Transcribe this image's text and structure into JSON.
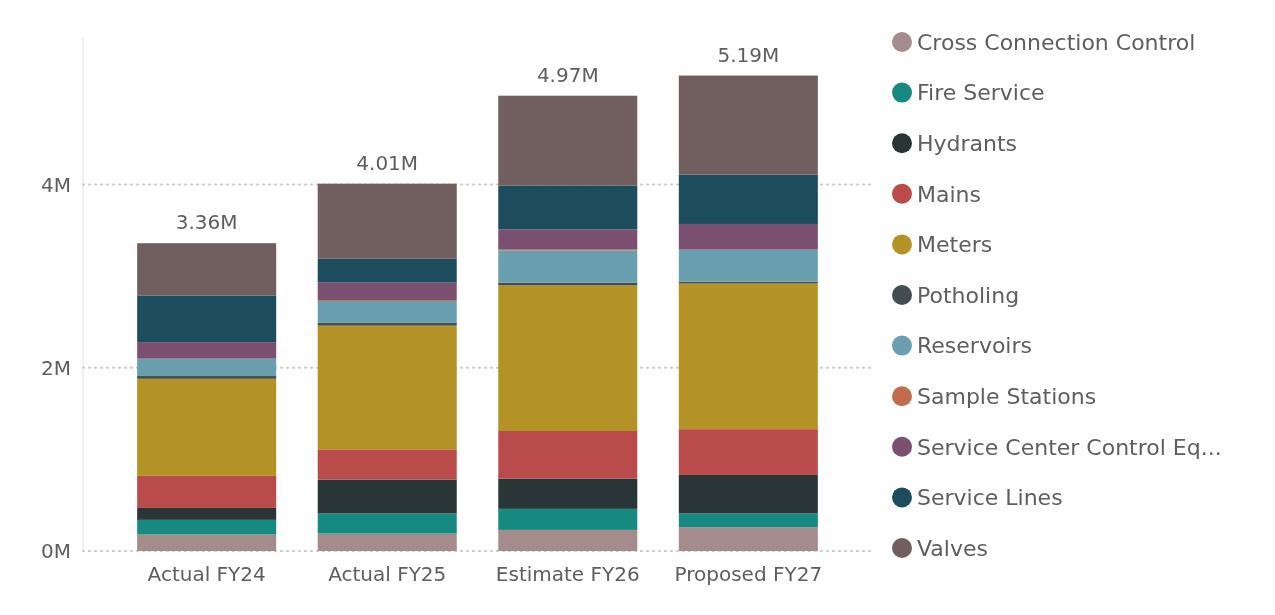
{
  "chart_data": {
    "type": "bar",
    "stacked": true,
    "categories": [
      "Actual FY24",
      "Actual FY25",
      "Estimate FY26",
      "Proposed FY27"
    ],
    "series": [
      {
        "name": "Cross Connection Control",
        "color": "#a58c8c",
        "values": [
          0.18,
          0.19,
          0.23,
          0.26
        ]
      },
      {
        "name": "Fire Service",
        "color": "#168a80",
        "values": [
          0.16,
          0.22,
          0.23,
          0.15
        ]
      },
      {
        "name": "Hydrants",
        "color": "#293537",
        "values": [
          0.13,
          0.37,
          0.33,
          0.42
        ]
      },
      {
        "name": "Mains",
        "color": "#b94b4b",
        "values": [
          0.35,
          0.33,
          0.52,
          0.5
        ]
      },
      {
        "name": "Meters",
        "color": "#b49326",
        "values": [
          1.06,
          1.35,
          1.59,
          1.59
        ]
      },
      {
        "name": "Potholing",
        "color": "#434e52",
        "values": [
          0.03,
          0.03,
          0.03,
          0.02
        ]
      },
      {
        "name": "Reservoirs",
        "color": "#6a9fb0",
        "values": [
          0.19,
          0.24,
          0.35,
          0.35
        ]
      },
      {
        "name": "Sample Stations",
        "color": "#c26c4e",
        "values": [
          0,
          0.01,
          0.01,
          0
        ]
      },
      {
        "name": "Service Center Control Eq...",
        "color": "#7b4f70",
        "values": [
          0.18,
          0.19,
          0.22,
          0.28
        ]
      },
      {
        "name": "Service Lines",
        "color": "#1d4d5c",
        "values": [
          0.51,
          0.26,
          0.48,
          0.54
        ]
      },
      {
        "name": "Valves",
        "color": "#705f5e",
        "values": [
          0.57,
          0.82,
          0.98,
          1.08
        ]
      }
    ],
    "totals": [
      "3.36M",
      "4.01M",
      "4.97M",
      "5.19M"
    ],
    "ylim": [
      0,
      5.6
    ],
    "yticks": [
      {
        "value": 0,
        "label": "0M"
      },
      {
        "value": 2,
        "label": "2M"
      },
      {
        "value": 4,
        "label": "4M"
      }
    ],
    "grid": "y",
    "legend": "right"
  }
}
